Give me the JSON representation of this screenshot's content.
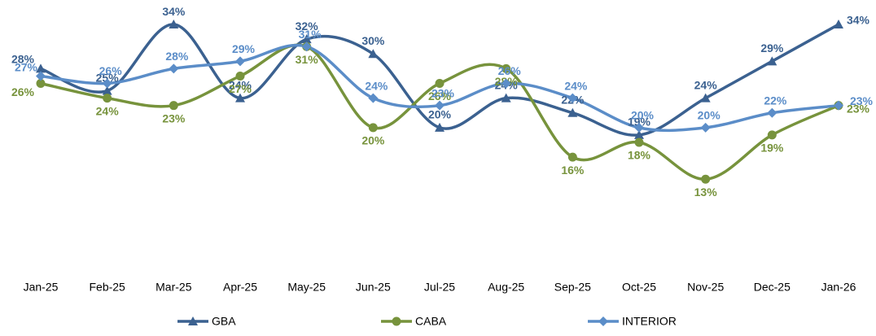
{
  "chart_data": {
    "type": "line",
    "smooth": true,
    "legend": "bottom",
    "categories": [
      "Jan-25",
      "Feb-25",
      "Mar-25",
      "Apr-25",
      "May-25",
      "Jun-25",
      "Jul-25",
      "Aug-25",
      "Sep-25",
      "Oct-25",
      "Nov-25",
      "Dec-25",
      "Jan-26"
    ],
    "ylim": [
      0,
      35
    ],
    "series": [
      {
        "name": "GBA",
        "color": "#3b6190",
        "marker": "triangle",
        "values": [
          28,
          25,
          34,
          24,
          32,
          30,
          20,
          24,
          22,
          19,
          24,
          29,
          34
        ],
        "value_labels": [
          "28%",
          "25%",
          "34%",
          "24%",
          "32%",
          "30%",
          "20%",
          "24%",
          "22%",
          "19%",
          "24%",
          "29%",
          "34%"
        ]
      },
      {
        "name": "CABA",
        "color": "#77933c",
        "marker": "circle",
        "values": [
          26,
          24,
          23,
          27,
          31,
          20,
          26,
          28,
          16,
          18,
          13,
          19,
          23
        ],
        "value_labels": [
          "26%",
          "24%",
          "23%",
          "27%",
          "31%",
          "20%",
          "26%",
          "28%",
          "16%",
          "18%",
          "13%",
          "19%",
          "23%"
        ]
      },
      {
        "name": "INTERIOR",
        "color": "#5b8dc8",
        "marker": "diamond",
        "values": [
          27,
          26,
          28,
          29,
          31,
          24,
          23,
          26,
          24,
          20,
          20,
          22,
          23
        ],
        "value_labels": [
          "27%",
          "26%",
          "28%",
          "29%",
          "31%",
          "24%",
          "23%",
          "26%",
          "24%",
          "20%",
          "20%",
          "22%",
          "23%"
        ]
      }
    ]
  }
}
